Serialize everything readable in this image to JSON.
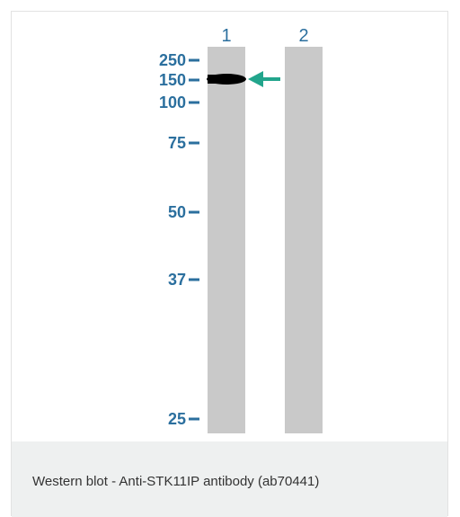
{
  "blot": {
    "lanes": [
      "1",
      "2"
    ],
    "markers": [
      "250",
      "150",
      "100",
      "75",
      "50",
      "37",
      "25"
    ]
  },
  "caption": "Western blot - Anti-STK11IP antibody (ab70441)"
}
